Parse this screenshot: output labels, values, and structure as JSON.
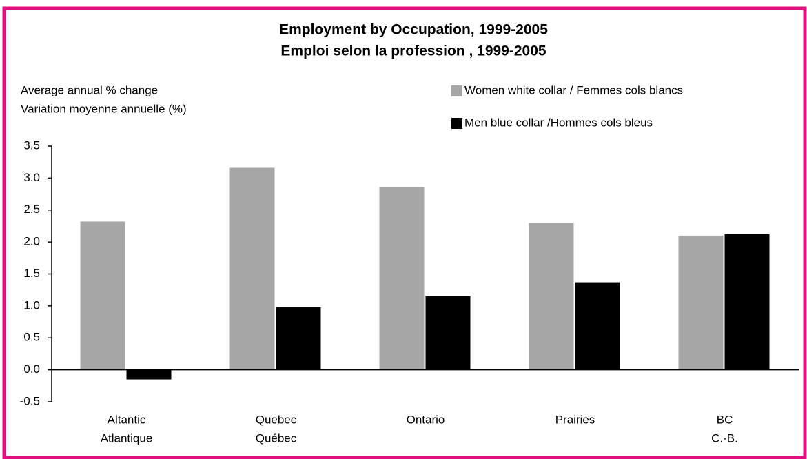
{
  "chart_data": {
    "type": "bar",
    "title": [
      "Employment by Occupation, 1999-2005",
      "Emploi selon la profession , 1999-2005"
    ],
    "y_label": [
      "Average annual % change",
      "Variation moyenne annuelle (%)"
    ],
    "categories": [
      [
        "Altantic",
        "Atlantique"
      ],
      [
        "Quebec",
        "Québec"
      ],
      [
        "Ontario"
      ],
      [
        "Prairies"
      ],
      [
        "BC",
        "C.-B."
      ]
    ],
    "series": [
      {
        "name": "Women white collar / Femmes cols blancs",
        "color": "#a6a6a6",
        "values": [
          2.32,
          3.16,
          2.86,
          2.3,
          2.1
        ]
      },
      {
        "name": "Men blue collar /Hommes cols bleus",
        "color": "#000000",
        "values": [
          -0.15,
          0.98,
          1.15,
          1.37,
          2.12
        ]
      }
    ],
    "ylim": [
      -0.5,
      3.5
    ],
    "yticks": [
      -0.5,
      {
        "value": 0,
        "label": "0.0"
      },
      0.5,
      {
        "value": 1,
        "label": "1.0"
      },
      1.5,
      {
        "value": 2,
        "label": "2.0"
      },
      2.5,
      {
        "value": 3,
        "label": "3.0"
      },
      3.5
    ],
    "legend": "top-right"
  }
}
